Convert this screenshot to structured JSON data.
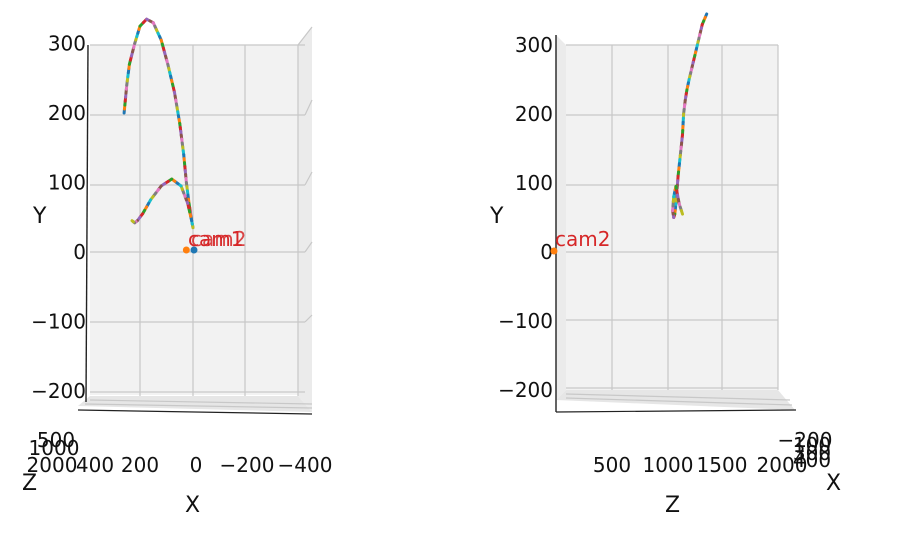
{
  "colors": {
    "pane": "#f2f2f2",
    "grid": "#c8c8c8",
    "axis": "#222222",
    "cam_label": "#d62728",
    "cam_marker_1": "#1f77b4",
    "cam_marker_2": "#ff7f0e",
    "trajectory_cycle": [
      "#1f77b4",
      "#ff7f0e",
      "#2ca02c",
      "#d62728",
      "#9467bd",
      "#8c564b",
      "#e377c2",
      "#7f7f7f",
      "#bcbd22",
      "#17becf"
    ]
  },
  "chart_data": [
    {
      "type": "line",
      "projection": "3d",
      "view": "front",
      "title": "",
      "xlabel": "X",
      "ylabel": "Y",
      "zlabel": "Z",
      "y_ticks": [
        "300",
        "200",
        "100",
        "0",
        "−100",
        "−200"
      ],
      "x_ticks": [
        "400",
        "200",
        "0",
        "−200",
        "−400"
      ],
      "z_ticks_overlapping": [
        "500",
        "1000",
        "2000"
      ],
      "ylim": [
        -200,
        300
      ],
      "xlim": [
        -400,
        400
      ],
      "camera_labels": [
        "cam1",
        "cam2"
      ],
      "trajectory": {
        "x": [
          260,
          250,
          240,
          220,
          200,
          175,
          150,
          120,
          95,
          70,
          50,
          35,
          25,
          15,
          5,
          0,
          5,
          20,
          45,
          80,
          120,
          160,
          190,
          210,
          220,
          230
        ],
        "y": [
          200,
          240,
          270,
          300,
          325,
          335,
          330,
          305,
          270,
          230,
          185,
          140,
          100,
          70,
          45,
          35,
          45,
          70,
          95,
          105,
          95,
          75,
          55,
          45,
          42,
          45
        ]
      },
      "cameras": [
        {
          "name": "cam1",
          "x": 0,
          "y": 0
        },
        {
          "name": "cam2",
          "x": 10,
          "y": 0
        }
      ]
    },
    {
      "type": "line",
      "projection": "3d",
      "view": "side",
      "title": "",
      "xlabel": "X",
      "ylabel": "Y",
      "zlabel": "Z",
      "y_ticks": [
        "300",
        "200",
        "100",
        "0",
        "−100",
        "−200"
      ],
      "z_ticks": [
        "500",
        "1000",
        "1500",
        "2000"
      ],
      "x_ticks_overlapping": [
        "−200",
        "100",
        "300",
        "400"
      ],
      "ylim": [
        -200,
        300
      ],
      "zlim": [
        0,
        2000
      ],
      "camera_labels": [
        "cam2"
      ],
      "trajectory": {
        "z": [
          1370,
          1330,
          1300,
          1270,
          1240,
          1210,
          1190,
          1175,
          1160,
          1150,
          1130,
          1110,
          1100,
          1090,
          1080,
          1070,
          1060,
          1070,
          1090,
          1120,
          1150
        ],
        "y": [
          345,
          330,
          310,
          290,
          270,
          250,
          235,
          220,
          200,
          170,
          140,
          110,
          90,
          70,
          55,
          50,
          60,
          80,
          95,
          70,
          55
        ]
      },
      "cameras": [
        {
          "name": "cam2",
          "z": 0,
          "y": 0
        }
      ]
    }
  ]
}
